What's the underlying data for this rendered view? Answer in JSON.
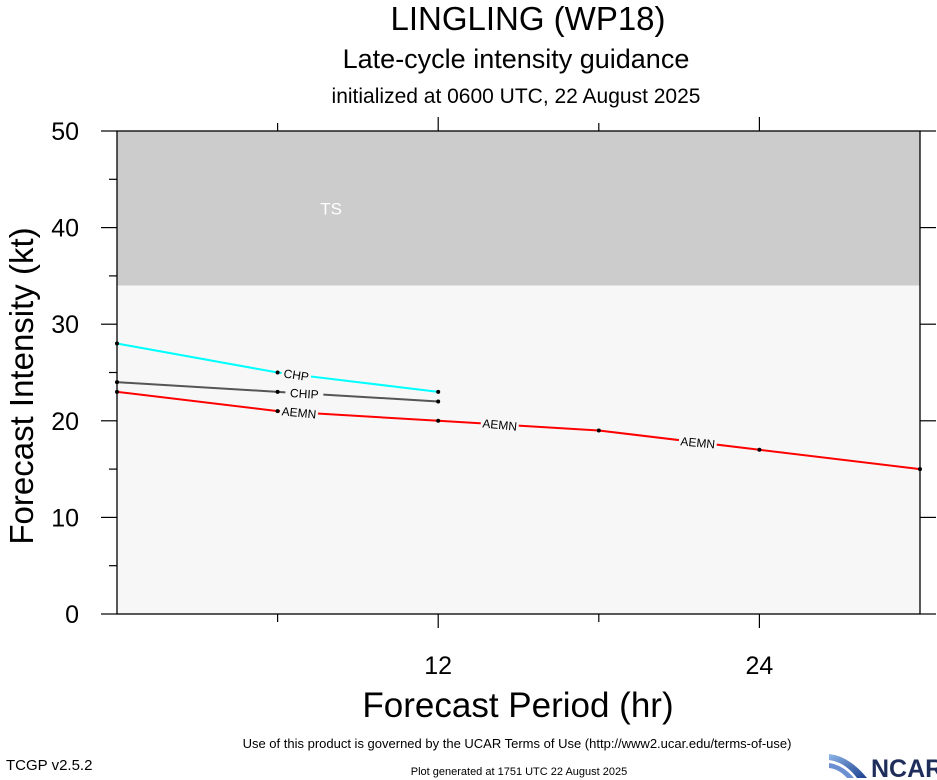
{
  "title": "LINGLING (WP18)",
  "subtitle": "Late-cycle intensity guidance",
  "initialized": "initialized at 0600 UTC, 22 August 2025",
  "footer": {
    "terms": "Use of this product is governed by the UCAR Terms of Use (http://www2.ucar.edu/terms-of-use)",
    "version": "TCGP v2.5.2",
    "generated": "Plot generated at 1751 UTC   22 August 2025",
    "logo_text": "NCAR"
  },
  "chart_data": {
    "type": "line",
    "title": "LINGLING (WP18)",
    "subtitle": "Late-cycle intensity guidance",
    "xlabel": "Forecast Period (hr)",
    "ylabel": "Forecast Intensity (kt)",
    "xlim": [
      0,
      30
    ],
    "ylim": [
      0,
      50
    ],
    "x_ticks": [
      12,
      24
    ],
    "y_ticks": [
      0,
      10,
      20,
      30,
      40,
      50
    ],
    "y_minor_step": 5,
    "x_minor_step": 6,
    "grid": false,
    "background_bands": [
      {
        "label": "TS",
        "y_from": 34,
        "y_to": 50,
        "color": "#cccccc"
      },
      {
        "label": "",
        "y_from": 0,
        "y_to": 34,
        "color": "#f7f7f7"
      }
    ],
    "series": [
      {
        "name": "CHP",
        "color": "#00ffff",
        "points": [
          [
            0,
            28
          ],
          [
            6,
            25
          ],
          [
            12,
            23
          ]
        ],
        "labels": [
          {
            "x": 6.7,
            "text": "CHP"
          }
        ]
      },
      {
        "name": "CHIP",
        "color": "#555555",
        "points": [
          [
            0,
            24
          ],
          [
            6,
            23
          ],
          [
            12,
            22
          ]
        ],
        "labels": [
          {
            "x": 7.0,
            "text": "CHIP"
          }
        ]
      },
      {
        "name": "AEMN",
        "color": "#ff0000",
        "points": [
          [
            0,
            23
          ],
          [
            6,
            21
          ],
          [
            12,
            20
          ],
          [
            18,
            19
          ],
          [
            24,
            17
          ],
          [
            30,
            15
          ]
        ],
        "labels": [
          {
            "x": 6.8,
            "text": "AEMN"
          },
          {
            "x": 14.3,
            "text": "AEMN"
          },
          {
            "x": 21.7,
            "text": "AEMN"
          }
        ]
      }
    ]
  }
}
